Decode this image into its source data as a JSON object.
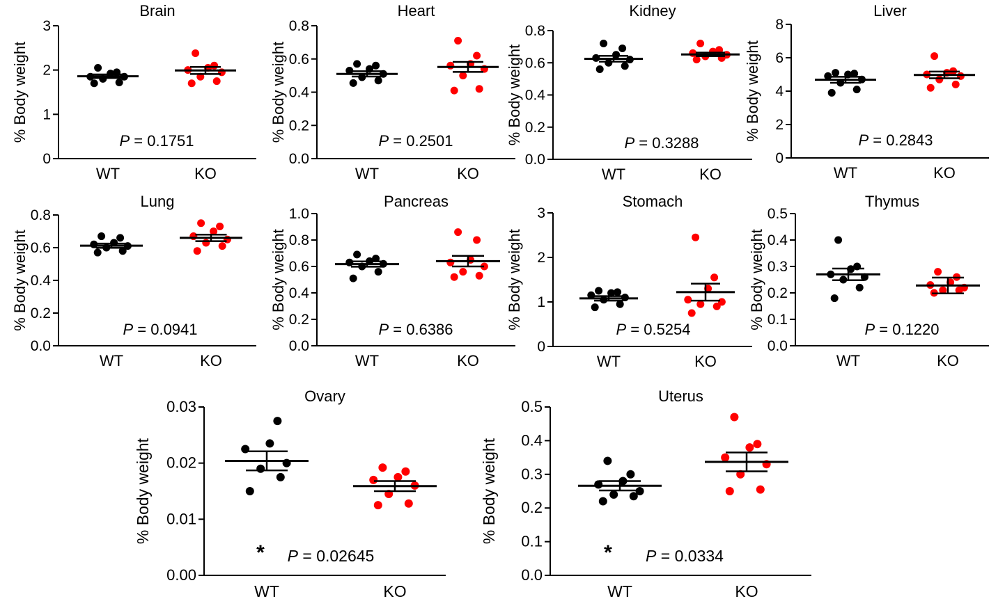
{
  "figure": {
    "point_colors": {
      "WT": "#000000",
      "KO": "#ff0000"
    }
  },
  "chart_data": [
    {
      "type": "scatter",
      "title": "Brain",
      "ylabel": "% Body weight",
      "categories": [
        "WT",
        "KO"
      ],
      "ylim": [
        0,
        3
      ],
      "yticks": [
        "0",
        "1",
        "2",
        "3"
      ],
      "series": [
        {
          "group": "WT",
          "values": [
            1.7,
            1.72,
            1.8,
            1.85,
            1.85,
            1.92,
            1.95,
            2.05
          ],
          "mean": 1.86,
          "sem": 0.04
        },
        {
          "group": "KO",
          "values": [
            1.7,
            1.75,
            1.85,
            1.95,
            2.0,
            2.05,
            2.1,
            2.38
          ],
          "mean": 1.99,
          "sem": 0.08
        }
      ],
      "annotation": {
        "p_label": "P",
        "p_value": "= 0.1751",
        "star": ""
      }
    },
    {
      "type": "scatter",
      "title": "Heart",
      "ylabel": "% Body weight",
      "categories": [
        "WT",
        "KO"
      ],
      "ylim": [
        0,
        0.8
      ],
      "yticks": [
        "0.0",
        "0.2",
        "0.4",
        "0.6",
        "0.8"
      ],
      "series": [
        {
          "group": "WT",
          "values": [
            0.455,
            0.47,
            0.49,
            0.51,
            0.53,
            0.54,
            0.56,
            0.57
          ],
          "mean": 0.51,
          "sem": 0.016
        },
        {
          "group": "KO",
          "values": [
            0.41,
            0.42,
            0.5,
            0.54,
            0.56,
            0.57,
            0.62,
            0.71
          ],
          "mean": 0.552,
          "sem": 0.03
        }
      ],
      "annotation": {
        "p_label": "P",
        "p_value": "= 0.2501",
        "star": ""
      }
    },
    {
      "type": "scatter",
      "title": "Kidney",
      "ylabel": "% Body weight",
      "categories": [
        "WT",
        "KO"
      ],
      "ylim": [
        0,
        0.8
      ],
      "yticks": [
        "0.0",
        "0.2",
        "0.4",
        "0.6",
        "0.8"
      ],
      "series": [
        {
          "group": "WT",
          "values": [
            0.56,
            0.58,
            0.6,
            0.62,
            0.63,
            0.65,
            0.69,
            0.72
          ],
          "mean": 0.625,
          "sem": 0.018
        },
        {
          "group": "KO",
          "values": [
            0.62,
            0.63,
            0.64,
            0.65,
            0.66,
            0.67,
            0.68,
            0.72
          ],
          "mean": 0.652,
          "sem": 0.011
        }
      ],
      "annotation": {
        "p_label": "P",
        "p_value": "= 0.3288",
        "star": ""
      }
    },
    {
      "type": "scatter",
      "title": "Liver",
      "ylabel": "% Body weight",
      "categories": [
        "WT",
        "KO"
      ],
      "ylim": [
        0,
        8
      ],
      "yticks": [
        "0",
        "2",
        "4",
        "6",
        "8"
      ],
      "series": [
        {
          "group": "WT",
          "values": [
            3.9,
            4.1,
            4.5,
            4.7,
            4.9,
            5.0,
            5.05,
            5.1
          ],
          "mean": 4.68,
          "sem": 0.18
        },
        {
          "group": "KO",
          "values": [
            4.2,
            4.4,
            4.7,
            4.9,
            5.0,
            5.1,
            5.2,
            6.1
          ],
          "mean": 4.97,
          "sem": 0.2
        }
      ],
      "annotation": {
        "p_label": "P",
        "p_value": "= 0.2843",
        "star": ""
      }
    },
    {
      "type": "scatter",
      "title": "Lung",
      "ylabel": "% Body weight",
      "categories": [
        "WT",
        "KO"
      ],
      "ylim": [
        0,
        0.8
      ],
      "yticks": [
        "0.0",
        "0.2",
        "0.4",
        "0.6",
        "0.8"
      ],
      "series": [
        {
          "group": "WT",
          "values": [
            0.57,
            0.58,
            0.6,
            0.61,
            0.62,
            0.63,
            0.66,
            0.67
          ],
          "mean": 0.612,
          "sem": 0.013
        },
        {
          "group": "KO",
          "values": [
            0.58,
            0.61,
            0.63,
            0.65,
            0.67,
            0.7,
            0.73,
            0.75
          ],
          "mean": 0.66,
          "sem": 0.02
        }
      ],
      "annotation": {
        "p_label": "P",
        "p_value": "= 0.0941",
        "star": ""
      }
    },
    {
      "type": "scatter",
      "title": "Pancreas",
      "ylabel": "% Body weight",
      "categories": [
        "WT",
        "KO"
      ],
      "ylim": [
        0,
        1.0
      ],
      "yticks": [
        "0.0",
        "0.2",
        "0.4",
        "0.6",
        "0.8",
        "1.0"
      ],
      "series": [
        {
          "group": "WT",
          "values": [
            0.51,
            0.56,
            0.6,
            0.62,
            0.63,
            0.64,
            0.66,
            0.69
          ],
          "mean": 0.618,
          "sem": 0.02
        },
        {
          "group": "KO",
          "values": [
            0.52,
            0.53,
            0.56,
            0.6,
            0.63,
            0.65,
            0.8,
            0.86
          ],
          "mean": 0.64,
          "sem": 0.04
        }
      ],
      "annotation": {
        "p_label": "P",
        "p_value": "= 0.6386",
        "star": ""
      }
    },
    {
      "type": "scatter",
      "title": "Stomach",
      "ylabel": "% Body weight",
      "categories": [
        "WT",
        "KO"
      ],
      "ylim": [
        0,
        3
      ],
      "yticks": [
        "0",
        "1",
        "2",
        "3"
      ],
      "series": [
        {
          "group": "WT",
          "values": [
            0.88,
            0.95,
            1.05,
            1.1,
            1.15,
            1.2,
            1.22,
            1.25
          ],
          "mean": 1.08,
          "sem": 0.05
        },
        {
          "group": "KO",
          "values": [
            0.75,
            0.9,
            0.95,
            1.0,
            1.05,
            1.3,
            1.55,
            2.45
          ],
          "mean": 1.22,
          "sem": 0.19
        }
      ],
      "annotation": {
        "p_label": "P",
        "p_value": "= 0.5254",
        "star": ""
      }
    },
    {
      "type": "scatter",
      "title": "Thymus",
      "ylabel": "% Body weight",
      "categories": [
        "WT",
        "KO"
      ],
      "ylim": [
        0,
        0.5
      ],
      "yticks": [
        "0.0",
        "0.1",
        "0.2",
        "0.3",
        "0.4",
        "0.5"
      ],
      "series": [
        {
          "group": "WT",
          "values": [
            0.18,
            0.22,
            0.25,
            0.26,
            0.27,
            0.29,
            0.3,
            0.4
          ],
          "mean": 0.27,
          "sem": 0.022
        },
        {
          "group": "KO",
          "values": [
            0.2,
            0.21,
            0.21,
            0.22,
            0.23,
            0.24,
            0.26,
            0.28
          ],
          "mean": 0.228,
          "sem": 0.03
        }
      ],
      "annotation": {
        "p_label": "P",
        "p_value": "= 0.1220",
        "star": ""
      }
    },
    {
      "type": "scatter",
      "title": "Ovary",
      "ylabel": "% Body weight",
      "categories": [
        "WT",
        "KO"
      ],
      "ylim": [
        0,
        0.03
      ],
      "yticks": [
        "0.00",
        "0.01",
        "0.02",
        "0.03"
      ],
      "series": [
        {
          "group": "WT",
          "values": [
            0.015,
            0.0175,
            0.019,
            0.02,
            0.0225,
            0.0235,
            0.0275
          ],
          "mean": 0.0204,
          "sem": 0.0017
        },
        {
          "group": "KO",
          "values": [
            0.0125,
            0.0128,
            0.0145,
            0.016,
            0.017,
            0.0175,
            0.0185,
            0.0192
          ],
          "mean": 0.0159,
          "sem": 0.0009
        }
      ],
      "annotation": {
        "p_label": "P",
        "p_value": "= 0.02645",
        "star": "*"
      }
    },
    {
      "type": "scatter",
      "title": "Uterus",
      "ylabel": "% Body weight",
      "categories": [
        "WT",
        "KO"
      ],
      "ylim": [
        0,
        0.5
      ],
      "yticks": [
        "0.0",
        "0.1",
        "0.2",
        "0.3",
        "0.4",
        "0.5"
      ],
      "series": [
        {
          "group": "WT",
          "values": [
            0.22,
            0.235,
            0.24,
            0.25,
            0.27,
            0.28,
            0.3,
            0.34
          ],
          "mean": 0.266,
          "sem": 0.014
        },
        {
          "group": "KO",
          "values": [
            0.25,
            0.255,
            0.3,
            0.33,
            0.35,
            0.38,
            0.39,
            0.47
          ],
          "mean": 0.337,
          "sem": 0.028
        }
      ],
      "annotation": {
        "p_label": "P",
        "p_value": "= 0.0334",
        "star": "*"
      }
    }
  ]
}
